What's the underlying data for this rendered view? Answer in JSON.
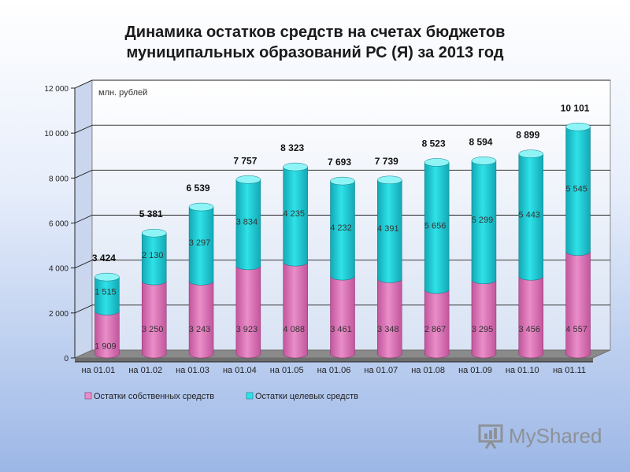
{
  "title": {
    "line1": "Динамика остатков средств на счетах бюджетов",
    "line2": "муниципальных образований РС (Я) за 2013 год"
  },
  "watermark": {
    "text": "MyShared"
  },
  "colors": {
    "own": "#e98ec8",
    "own_dark": "#c2559c",
    "target": "#2fe2e8",
    "target_dark": "#12a8b5"
  },
  "chart_data": {
    "type": "bar",
    "stacked": true,
    "unit_label": "млн. рублей",
    "categories": [
      "на 01.01",
      "на 01.02",
      "на 01.03",
      "на 01.04",
      "на 01.05",
      "на 01.06",
      "на 01.07",
      "на 01.08",
      "на 01.09",
      "на 01.10",
      "на 01.11"
    ],
    "series": [
      {
        "name": "Остатки собственных средств",
        "values": [
          1909,
          3250,
          3243,
          3923,
          4088,
          3461,
          3348,
          2867,
          3295,
          3456,
          4557
        ],
        "labels": [
          "1 909",
          "3 250",
          "3 243",
          "3 923",
          "4 088",
          "3 461",
          "3 348",
          "2 867",
          "3 295",
          "3 456",
          "4 557"
        ]
      },
      {
        "name": "Остатки целевых средств",
        "values": [
          1515,
          2130,
          3297,
          3834,
          4235,
          4232,
          4391,
          5656,
          5299,
          5443,
          5545
        ],
        "labels": [
          "1 515",
          "2 130",
          "3 297",
          "3 834",
          "4 235",
          "4 232",
          "4 391",
          "5 656",
          "5 299",
          "5 443",
          "5 545"
        ]
      }
    ],
    "totals": [
      "3 424",
      "5 381",
      "6 539",
      "7 757",
      "8 323",
      "7 693",
      "7 739",
      "8 523",
      "8 594",
      "8 899",
      "10 101"
    ],
    "ylim": [
      0,
      12000
    ],
    "yticks": [
      0,
      2000,
      4000,
      6000,
      8000,
      10000,
      12000
    ],
    "ytick_labels": [
      "0",
      "2 000",
      "4 000",
      "6 000",
      "8 000",
      "10 000",
      "12 000"
    ],
    "legend_position": "bottom",
    "grid": true
  }
}
